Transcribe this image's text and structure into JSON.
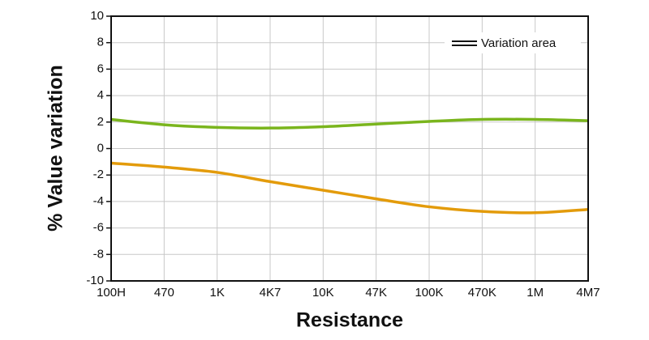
{
  "chart_data": {
    "type": "line",
    "x_label": "Resistance",
    "y_label": "% Value variation",
    "legend_label": "Variation area",
    "categories": [
      "100H",
      "470",
      "1K",
      "4K7",
      "10K",
      "47K",
      "100K",
      "470K",
      "1M",
      "4M7"
    ],
    "series": [
      {
        "color": "#7ab51d",
        "values": [
          2.2,
          1.8,
          1.6,
          1.55,
          1.65,
          1.85,
          2.05,
          2.2,
          2.2,
          2.1
        ]
      },
      {
        "color": "#e39b0b",
        "values": [
          -1.1,
          -1.4,
          -1.8,
          -2.5,
          -3.15,
          -3.8,
          -4.4,
          -4.75,
          -4.85,
          -4.6
        ]
      }
    ],
    "ylim": [
      -10,
      10
    ],
    "yticks": [
      -10,
      -8,
      -6,
      -4,
      -2,
      0,
      2,
      4,
      6,
      8,
      10
    ],
    "grid": true
  }
}
